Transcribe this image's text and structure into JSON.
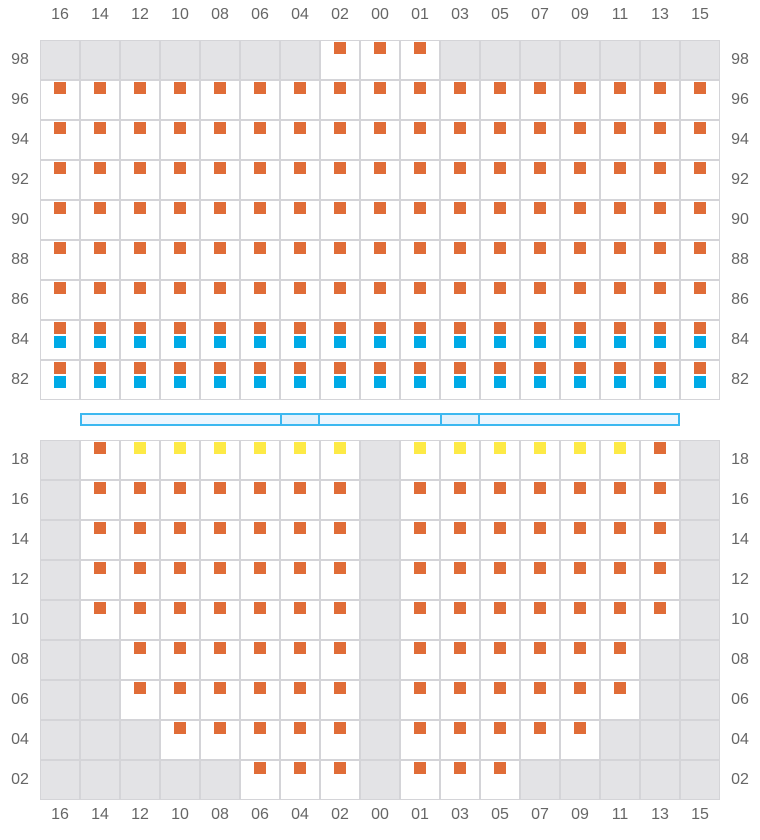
{
  "columns": [
    "16",
    "14",
    "12",
    "10",
    "08",
    "06",
    "04",
    "02",
    "00",
    "01",
    "03",
    "05",
    "07",
    "09",
    "11",
    "13",
    "15"
  ],
  "colors": {
    "taken": "#e06c37",
    "blue": "#00aae6",
    "yellow": "#fdea45",
    "blocked": "#e3e3e6",
    "border": "#d4d4d8",
    "bar": "#3cb8f0"
  },
  "upper_section": {
    "rows": [
      {
        "label": "98",
        "cells": "GGGGGGGOOOGGGGGGG"
      },
      {
        "label": "96",
        "cells": "OOOOOOOOOOOOOOOOO"
      },
      {
        "label": "94",
        "cells": "OOOOOOOOOOOOOOOOO"
      },
      {
        "label": "92",
        "cells": "OOOOOOOOOOOOOOOOO"
      },
      {
        "label": "90",
        "cells": "OOOOOOOOOOOOOOOOO"
      },
      {
        "label": "88",
        "cells": "OOOOOOOOOOOOOOOOO"
      },
      {
        "label": "86",
        "cells": "OOOOOOOOOOOOOOOOO"
      },
      {
        "label": "84",
        "cells": "BBBBBBBBBBBBBBBBB"
      },
      {
        "label": "82",
        "cells": "BBBBBBBBBBBBBBBBB"
      }
    ]
  },
  "lower_section": {
    "rows": [
      {
        "label": "18",
        "cells": "GOYYYYYYGYYYYYYOG"
      },
      {
        "label": "16",
        "cells": "GOOOOOOOGOOOOOOOG"
      },
      {
        "label": "14",
        "cells": "GOOOOOOOGOOOOOOOG"
      },
      {
        "label": "12",
        "cells": "GOOOOOOOGOOOOOOOG"
      },
      {
        "label": "10",
        "cells": "GOOOOOOOGOOOOOOOG"
      },
      {
        "label": "08",
        "cells": "GGOOOOOOGOOOOOOGG"
      },
      {
        "label": "06",
        "cells": "GGOOOOOOGOOOOOOGG"
      },
      {
        "label": "04",
        "cells": "GGGOOOOOGOOOOOGGG"
      },
      {
        "label": "02",
        "cells": "GGGGGOOOGOOOGGGGG"
      }
    ]
  }
}
